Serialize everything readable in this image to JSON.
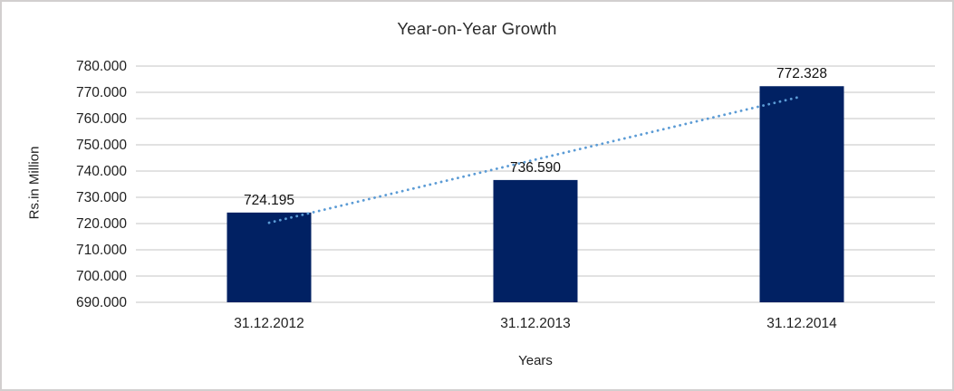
{
  "window": {
    "background": "#ffffff",
    "border_color": "#d2cfcf"
  },
  "chart_data": {
    "type": "bar",
    "title": "Year-on-Year Growth",
    "xlabel": "Years",
    "ylabel": "Rs.in Million",
    "categories": [
      "31.12.2012",
      "31.12.2013",
      "31.12.2014"
    ],
    "values": [
      724.195,
      736.59,
      772.328
    ],
    "data_labels": [
      "724.195",
      "736.590",
      "772.328"
    ],
    "y_ticks": [
      "780.000",
      "770.000",
      "760.000",
      "750.000",
      "740.000",
      "730.000",
      "720.000",
      "710.000",
      "700.000",
      "690.000"
    ],
    "ylim": [
      690,
      780
    ],
    "y_tick_step": 10,
    "grid": true,
    "legend": "none",
    "trendline": {
      "type": "linear",
      "style": "dotted"
    },
    "colors": {
      "bar": "#012163",
      "trend": "#5b9bd5",
      "gridline": "#d9d9d9",
      "axis_line": "#d9d9d9",
      "text": "#1f1f1f",
      "title_text": "#2b2b2b"
    }
  }
}
